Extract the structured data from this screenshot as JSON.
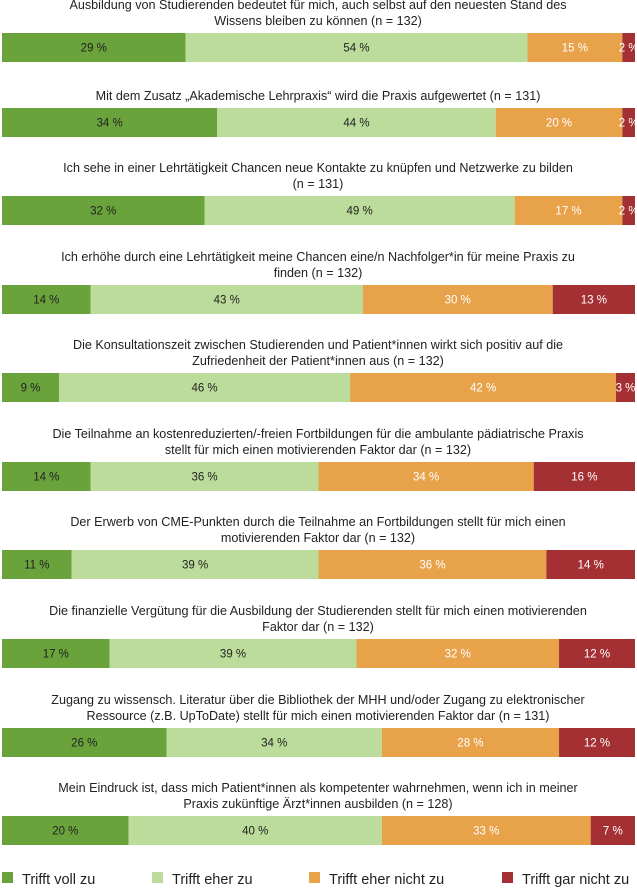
{
  "colors": {
    "trifft_voll_zu": "#6aa33c",
    "trifft_eher_zu": "#bcdc9b",
    "trifft_eher_nicht_zu": "#e8a24a",
    "trifft_gar_nicht_zu": "#a53034"
  },
  "chart_data": {
    "type": "bar",
    "stacked": true,
    "orientation": "horizontal",
    "unit": "%",
    "legend_position": "bottom",
    "series_names": [
      "Trifft voll zu",
      "Trifft eher zu",
      "Trifft eher nicht zu",
      "Trifft gar nicht zu"
    ],
    "items": [
      {
        "title": [
          "Ausbildung von Studierenden bedeutet für mich, auch selbst auf den neuesten Stand des",
          "Wissens bleiben zu können (n = 132)"
        ],
        "values": [
          29,
          54,
          15,
          2
        ]
      },
      {
        "title": [
          "Mit dem Zusatz „Akademische Lehrpraxis“ wird die Praxis aufgewertet (n = 131)"
        ],
        "values": [
          34,
          44,
          20,
          2
        ]
      },
      {
        "title": [
          "Ich sehe in einer Lehrtätigkeit Chancen neue Kontakte zu knüpfen und Netzwerke zu bilden",
          "(n = 131)"
        ],
        "values": [
          32,
          49,
          17,
          2
        ]
      },
      {
        "title": [
          "Ich erhöhe durch eine Lehrtätigkeit meine Chancen eine/n Nachfolger*in für meine Praxis zu",
          "finden (n = 132)"
        ],
        "values": [
          14,
          43,
          30,
          13
        ]
      },
      {
        "title": [
          "Die Konsultationszeit zwischen Studierenden und Patient*innen wirkt sich positiv auf die",
          "Zufriedenheit der Patient*innen aus (n = 132)"
        ],
        "values": [
          9,
          46,
          42,
          3
        ]
      },
      {
        "title": [
          "Die Teilnahme an kostenreduzierten/-freien Fortbildungen für die ambulante pädiatrische Praxis",
          "stellt für mich einen motivierenden Faktor dar (n = 132)"
        ],
        "values": [
          14,
          36,
          34,
          16
        ]
      },
      {
        "title": [
          "Der Erwerb von CME-Punkten durch die Teilnahme an Fortbildungen stellt für mich einen",
          "motivierenden Faktor dar (n = 132)"
        ],
        "values": [
          11,
          39,
          36,
          14
        ]
      },
      {
        "title": [
          "Die finanzielle Vergütung für die Ausbildung der Studierenden stellt für mich einen motivierenden",
          "Faktor dar (n = 132)"
        ],
        "values": [
          17,
          39,
          32,
          12
        ]
      },
      {
        "title": [
          "Zugang zu wissensch. Literatur über die Bibliothek der MHH und/oder Zugang zu elektronischer",
          "Ressource (z.B. UpToDate) stellt für mich einen motivierenden Faktor dar  (n = 131)"
        ],
        "values": [
          26,
          34,
          28,
          12
        ]
      },
      {
        "title": [
          "Mein Eindruck ist, dass mich Patient*innen als kompetenter wahrnehmen, wenn ich in meiner",
          "Praxis zukünftige Ärzt*innen ausbilden (n = 128)"
        ],
        "values": [
          20,
          40,
          33,
          7
        ]
      }
    ]
  }
}
